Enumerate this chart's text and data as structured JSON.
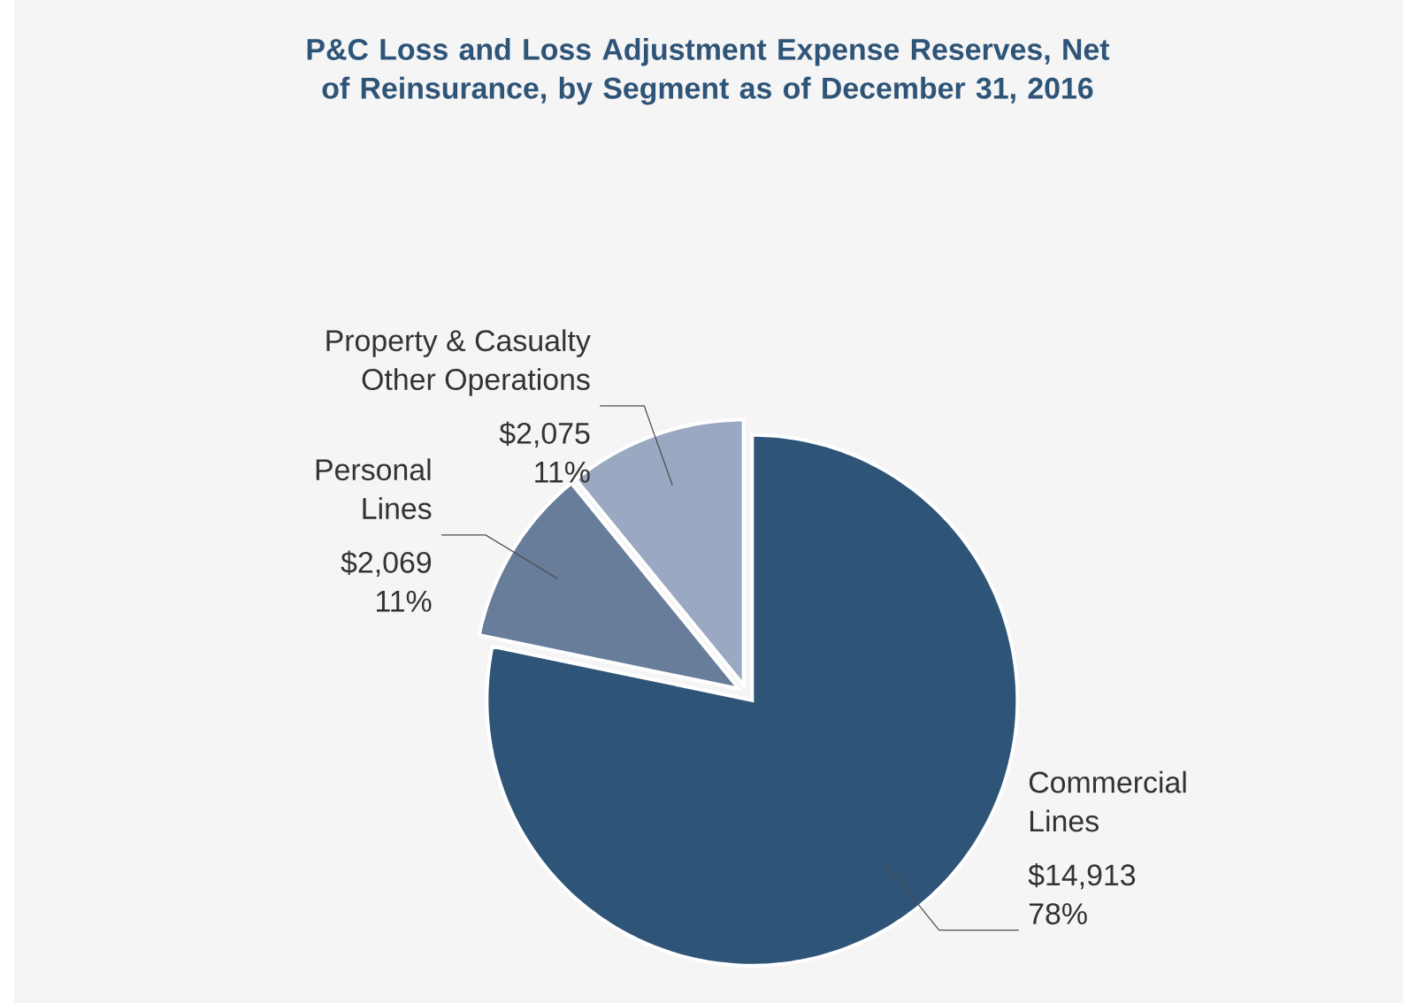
{
  "chart_data": {
    "type": "pie",
    "title": "P&C Loss and Loss Adjustment Expense Reserves, Net of Reinsurance, by Segment as of December 31, 2016",
    "categories": [
      "Commercial Lines",
      "Personal Lines",
      "Property & Casualty Other Operations"
    ],
    "values": [
      14913,
      2069,
      2075
    ],
    "colors": [
      "#2e5478",
      "#687d9a",
      "#9aa8c1"
    ],
    "value_labels": [
      "$14,913 78%",
      "$2,069 11%",
      "$2,075 11%"
    ]
  }
}
